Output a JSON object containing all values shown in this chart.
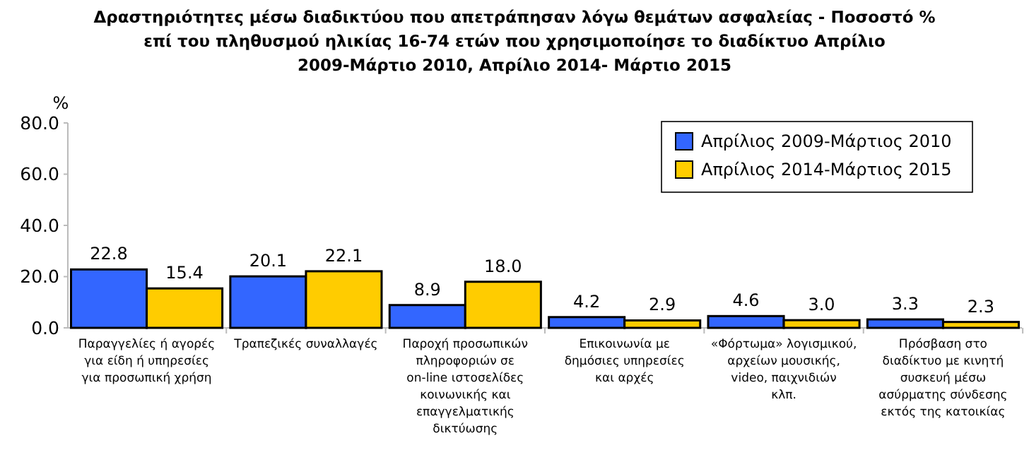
{
  "chart_data": {
    "type": "bar",
    "title": "Δραστηριότητες μέσω διαδικτύου που απετράπησαν λόγω θεμάτων ασφαλείας - Ποσοστό % επί του πληθυσμού ηλικίας 16-74 ετών που χρησιμοποίησε το διαδίκτυο Απρίλιο 2009-Μάρτιο 2010, Απρίλιο 2014- Μάρτιο 2015",
    "ylabel": "%",
    "categories": [
      "Παραγγελίες ή αγορές για είδη ή υπηρεσίες για προσωπική χρήση",
      "Τραπεζικές συναλλαγές",
      "Παροχή προσωπικών πληροφοριών σε on-line ιστοσελίδες κοινωνικής και επαγγελματικής δικτύωσης",
      "Επικοινωνία με δημόσιες υπηρεσίες και αρχές",
      "«Φόρτωμα» λογισμικού, αρχείων μουσικής, video, παιχνιδιών κλπ.",
      "Πρόσβαση στο διαδίκτυο με κινητή συσκευή μέσω ασύρματης σύνδεσης εκτός της κατοικίας"
    ],
    "series": [
      {
        "name": "Απρίλιος 2009-Μάρτιος 2010",
        "color": "#3366ff",
        "values": [
          22.8,
          20.1,
          8.9,
          4.2,
          4.6,
          3.3
        ],
        "value_labels": [
          "22.8",
          "20.1",
          "8.9",
          "4.2",
          "4.6",
          "3.3"
        ]
      },
      {
        "name": "Απρίλιος 2014-Μάρτιος 2015",
        "color": "#ffcc00",
        "values": [
          15.4,
          22.1,
          18.0,
          2.9,
          3.0,
          2.3
        ],
        "value_labels": [
          "15.4",
          "22.1",
          "18.0",
          "2.9",
          "3.0",
          "2.3"
        ]
      }
    ],
    "ylim": [
      0,
      80
    ],
    "yticks": [
      {
        "value": 0,
        "label": "0.0"
      },
      {
        "value": 20,
        "label": "20.0"
      },
      {
        "value": 40,
        "label": "40.0"
      },
      {
        "value": 60,
        "label": "60.0"
      },
      {
        "value": 80,
        "label": "80.0"
      }
    ],
    "legend": "top right",
    "grid": false
  }
}
